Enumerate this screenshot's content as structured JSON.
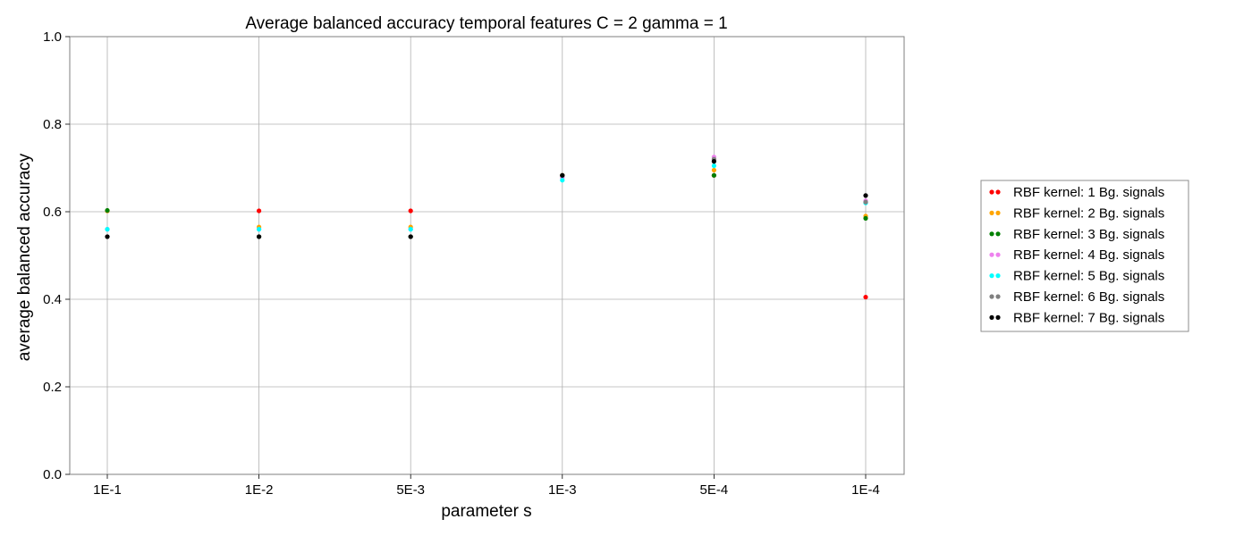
{
  "chart_data": {
    "type": "scatter",
    "title": "Average balanced accuracy temporal features C = 2 gamma = 1",
    "xlabel": "parameter s",
    "ylabel": "average balanced accuracy",
    "categories": [
      "1E-1",
      "1E-2",
      "5E-3",
      "1E-3",
      "5E-4",
      "1E-4"
    ],
    "ylim": [
      0,
      1.0
    ],
    "yticks": [
      "0.0",
      "0.2",
      "0.4",
      "0.6",
      "0.8",
      "1.0"
    ],
    "grid": true,
    "legend_position": "right",
    "series": [
      {
        "name": "RBF kernel: 1 Bg. signals",
        "color": "#ff0000",
        "values": [
          0.602,
          0.602,
          0.602,
          0.683,
          0.683,
          0.405
        ]
      },
      {
        "name": "RBF kernel: 2 Bg. signals",
        "color": "#ffa500",
        "values": [
          0.602,
          0.565,
          0.565,
          0.683,
          0.695,
          0.59
        ]
      },
      {
        "name": "RBF kernel: 3 Bg. signals",
        "color": "#008000",
        "values": [
          0.603,
          0.543,
          0.543,
          0.683,
          0.683,
          0.585
        ]
      },
      {
        "name": "RBF kernel: 4 Bg. signals",
        "color": "#ee82ee",
        "values": [
          0.56,
          0.56,
          0.56,
          0.678,
          0.725,
          0.625
        ]
      },
      {
        "name": "RBF kernel: 5 Bg. signals",
        "color": "#00ffff",
        "values": [
          0.56,
          0.56,
          0.56,
          0.672,
          0.705,
          0.62
        ]
      },
      {
        "name": "RBF kernel: 6 Bg. signals",
        "color": "#808080",
        "values": [
          0.543,
          0.543,
          0.543,
          0.683,
          0.72,
          0.622
        ]
      },
      {
        "name": "RBF kernel: 7 Bg. signals",
        "color": "#000000",
        "values": [
          0.543,
          0.543,
          0.543,
          0.683,
          0.715,
          0.637
        ]
      }
    ]
  }
}
